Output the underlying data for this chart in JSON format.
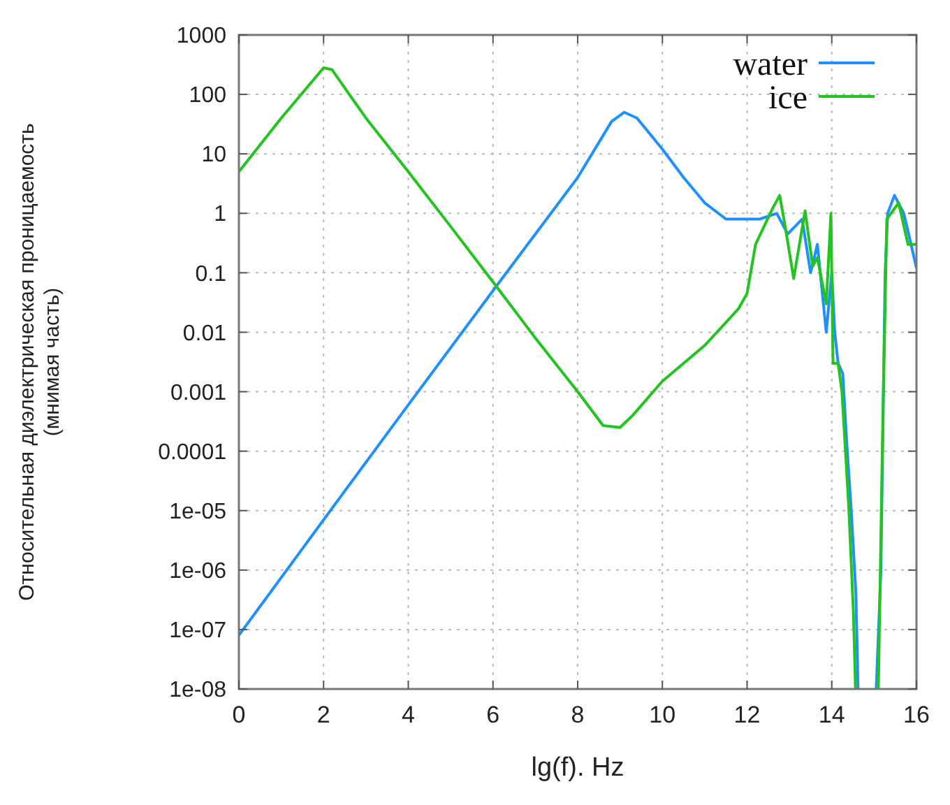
{
  "chart_data": {
    "type": "line",
    "xlabel": "lg(f). Hz",
    "ylabel": "Относительная диэлектрическая проницаемость\n(мнимая часть)",
    "log": "y",
    "grid": true,
    "legend": "top right",
    "xlim": [
      0,
      16
    ],
    "ylim": [
      1e-08,
      1000
    ],
    "xticks": [
      0,
      2,
      4,
      6,
      8,
      10,
      12,
      14,
      16
    ],
    "yticks": [
      1000,
      100,
      10,
      1,
      0.1,
      0.01,
      0.001,
      0.0001,
      {
        "value": 1e-05,
        "label": "1e-05"
      },
      {
        "value": 1e-06,
        "label": "1e-06"
      },
      {
        "value": 1e-07,
        "label": "1e-07"
      },
      {
        "value": 1e-08,
        "label": "1e-08"
      }
    ],
    "series": [
      {
        "name": "water",
        "color": "#1e90ff",
        "x": [
          0,
          2,
          4,
          6,
          8,
          8.8,
          9.1,
          9.4,
          10,
          10.5,
          11,
          11.5,
          12,
          12.3,
          12.7,
          12.96,
          13.3,
          13.5,
          13.66,
          13.87,
          14.0,
          14.07,
          14.15,
          14.26,
          14.35,
          14.46,
          14.57,
          14.62,
          14.8,
          15.05,
          15.16,
          15.26,
          15.32,
          15.48,
          15.7,
          15.85,
          16
        ],
        "values": [
          8e-08,
          7e-06,
          0.0006,
          0.05,
          4,
          35,
          50,
          40,
          12,
          4,
          1.5,
          0.8,
          0.8,
          0.8,
          1.0,
          0.45,
          0.8,
          0.1,
          0.3,
          0.01,
          0.1,
          0.01,
          0.003,
          0.002,
          0.00015,
          1e-05,
          4e-07,
          1e-08,
          null,
          1e-08,
          1e-06,
          0.1,
          1,
          2,
          1,
          0.35,
          0.12
        ]
      },
      {
        "name": "ice",
        "color": "#22c41e",
        "x": [
          0,
          1,
          2,
          2.2,
          3,
          4,
          5,
          6,
          7,
          8,
          8.6,
          9,
          9.3,
          10,
          11,
          11.8,
          12,
          12.2,
          12.4,
          12.6,
          12.77,
          12.9,
          13.1,
          13.37,
          13.55,
          13.66,
          13.87,
          13.98,
          14.03,
          14.15,
          14.24,
          14.4,
          14.51,
          14.56,
          14.8,
          15.1,
          15.21,
          15.3,
          15.58,
          15.8,
          16
        ],
        "values": [
          5,
          40,
          280,
          260,
          40,
          5,
          0.6,
          0.07,
          0.008,
          0.001,
          0.00027,
          0.00025,
          0.0004,
          0.0015,
          0.006,
          0.025,
          0.045,
          0.3,
          0.6,
          1.2,
          2,
          0.6,
          0.08,
          1.1,
          0.13,
          0.18,
          0.03,
          1,
          0.003,
          0.003,
          0.001,
          1.2e-05,
          2e-07,
          1e-08,
          null,
          1e-08,
          0.0005,
          0.8,
          1.5,
          0.3,
          0.3
        ]
      }
    ]
  }
}
